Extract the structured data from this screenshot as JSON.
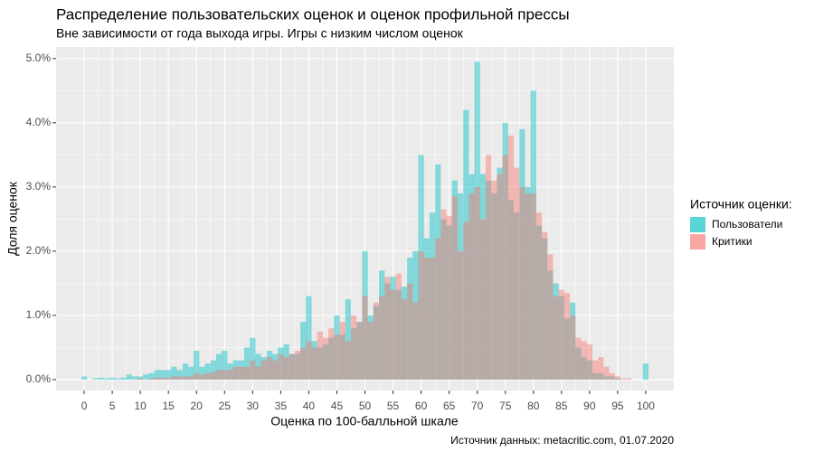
{
  "chart_data": {
    "type": "histogram",
    "title": "Распределение пользовательских оценок и оценок профильной прессы",
    "subtitle": "Вне зависимости от года выхода игры. Игры с низким числом оценок",
    "x_label": "Оценка по 100-балльной шкале",
    "y_label": "Доля оценок",
    "caption": "Источник данных: metacritic.com, 01.07.2020",
    "legend_title": "Источник оценки:",
    "legend_position": "right",
    "grid": true,
    "opacity": 0.45,
    "xlim": [
      -5,
      105
    ],
    "ylim": [
      -0.17,
      5.18
    ],
    "xticks": [
      0,
      5,
      10,
      15,
      20,
      25,
      30,
      35,
      40,
      45,
      50,
      55,
      60,
      65,
      70,
      75,
      80,
      85,
      90,
      95,
      100
    ],
    "yticks": [
      {
        "value": 0,
        "label": "0.0%"
      },
      {
        "value": 1,
        "label": "1.0%"
      },
      {
        "value": 2,
        "label": "2.0%"
      },
      {
        "value": 3,
        "label": "3.0%"
      },
      {
        "value": 4,
        "label": "4.0%"
      },
      {
        "value": 5,
        "label": "5.0%"
      }
    ],
    "bins": [
      -0.5,
      0.5,
      1.5,
      2.5,
      3.5,
      4.5,
      5.5,
      6.5,
      7.5,
      8.5,
      9.5,
      10.5,
      11.5,
      12.5,
      13.5,
      14.5,
      15.5,
      16.5,
      17.5,
      18.5,
      19.5,
      20.5,
      21.5,
      22.5,
      23.5,
      24.5,
      25.5,
      26.5,
      27.5,
      28.5,
      29.5,
      30.5,
      31.5,
      32.5,
      33.5,
      34.5,
      35.5,
      36.5,
      37.5,
      38.5,
      39.5,
      40.5,
      41.5,
      42.5,
      43.5,
      44.5,
      45.5,
      46.5,
      47.5,
      48.5,
      49.5,
      50.5,
      51.5,
      52.5,
      53.5,
      54.5,
      55.5,
      56.5,
      57.5,
      58.5,
      59.5,
      60.5,
      61.5,
      62.5,
      63.5,
      64.5,
      65.5,
      66.5,
      67.5,
      68.5,
      69.5,
      70.5,
      71.5,
      72.5,
      73.5,
      74.5,
      75.5,
      76.5,
      77.5,
      78.5,
      79.5,
      80.5,
      81.5,
      82.5,
      83.5,
      84.5,
      85.5,
      86.5,
      87.5,
      88.5,
      89.5,
      90.5,
      91.5,
      92.5,
      93.5,
      94.5,
      95.5,
      96.5,
      97.5,
      98.5,
      99.5,
      100.5
    ],
    "series": [
      {
        "name": "Пользователи",
        "color": "#00BFC4",
        "values": [
          0.05,
          0,
          0.02,
          0.03,
          0.02,
          0.03,
          0.02,
          0.03,
          0.08,
          0.05,
          0.05,
          0.08,
          0.1,
          0.15,
          0.15,
          0.15,
          0.2,
          0.15,
          0.25,
          0.2,
          0.45,
          0.2,
          0.25,
          0.3,
          0.4,
          0.45,
          0.25,
          0.3,
          0.3,
          0.5,
          0.65,
          0.4,
          0.35,
          0.45,
          0.4,
          0.5,
          0.55,
          0.4,
          0.4,
          0.9,
          1.3,
          0.6,
          0.5,
          0.55,
          0.65,
          1.0,
          0.7,
          1.25,
          0.8,
          0.9,
          2.0,
          1.0,
          1.15,
          1.7,
          1.5,
          1.6,
          1.4,
          1.45,
          1.9,
          2.0,
          3.5,
          2.2,
          2.6,
          3.35,
          2.5,
          2.4,
          3.1,
          2.9,
          4.2,
          3.2,
          4.95,
          3.2,
          3.1,
          2.9,
          3.3,
          4.0,
          2.8,
          2.6,
          3.9,
          3.0,
          4.5,
          2.4,
          2.2,
          1.7,
          1.5,
          1.3,
          0.95,
          1.2,
          0.5,
          0.35,
          0.3,
          0.1,
          0.1,
          0.05,
          0.05,
          0.02,
          0,
          0,
          0,
          0,
          0.25
        ]
      },
      {
        "name": "Критики",
        "color": "#F8766D",
        "values": [
          0,
          0,
          0,
          0,
          0,
          0,
          0,
          0,
          0,
          0,
          0.02,
          0,
          0.02,
          0.03,
          0.03,
          0.03,
          0.05,
          0.05,
          0.05,
          0.05,
          0.1,
          0.08,
          0.1,
          0.12,
          0.15,
          0.15,
          0.15,
          0.2,
          0.2,
          0.2,
          0.3,
          0.2,
          0.3,
          0.35,
          0.3,
          0.4,
          0.35,
          0.4,
          0.45,
          0.5,
          0.6,
          0.5,
          0.75,
          0.65,
          0.8,
          0.7,
          0.9,
          0.6,
          1.0,
          0.9,
          1.3,
          0.9,
          1.2,
          1.3,
          1.6,
          1.4,
          1.65,
          1.25,
          1.5,
          1.2,
          2.0,
          1.9,
          1.9,
          2.2,
          2.65,
          2.55,
          2.85,
          2.0,
          2.45,
          2.9,
          3.0,
          2.5,
          3.5,
          3.1,
          3.2,
          3.5,
          3.8,
          3.3,
          3.0,
          2.9,
          2.9,
          2.6,
          2.3,
          1.95,
          1.3,
          1.4,
          1.35,
          1.0,
          0.65,
          0.6,
          0.55,
          0.3,
          0.35,
          0.2,
          0.1,
          0.05,
          0.02,
          0.02,
          0,
          0,
          0
        ]
      }
    ]
  }
}
